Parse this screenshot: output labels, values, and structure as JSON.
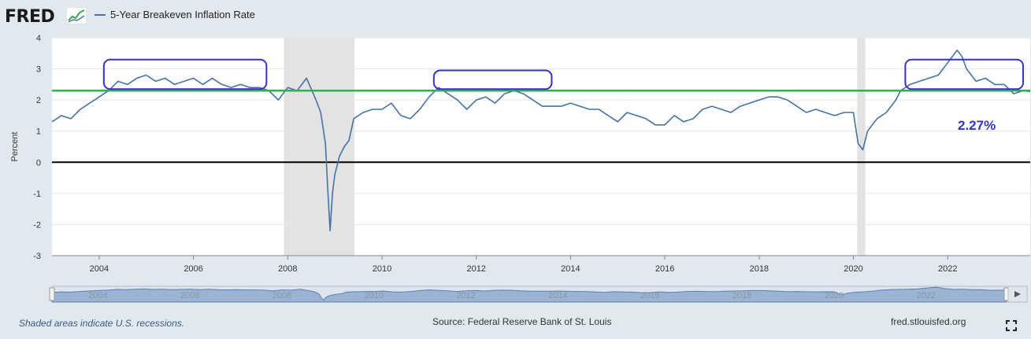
{
  "header": {
    "logo_text": "FRED",
    "logo_icon": "line-chart-icon",
    "legend_label": "5-Year Breakeven Inflation Rate"
  },
  "footer": {
    "recession_note": "Shaded areas indicate U.S. recessions.",
    "source": "Source: Federal Reserve Bank of St. Louis",
    "site": "fred.stlouisfed.org",
    "fullscreen_icon": "fullscreen-icon"
  },
  "colors": {
    "series": "#4572a7",
    "reference_line": "#2db34a",
    "zero_line": "#000000",
    "annotation": "#3333cc",
    "recession": "#e3e3e3",
    "background": "#e1e9f0"
  },
  "chart_data": {
    "type": "line",
    "ylabel": "Percent",
    "ylim": [
      -3,
      4
    ],
    "xlim": [
      2003.0,
      2023.75
    ],
    "x_ticks": [
      2004,
      2006,
      2008,
      2010,
      2012,
      2014,
      2016,
      2018,
      2020,
      2022
    ],
    "y_ticks": [
      -3,
      -2,
      -1,
      0,
      1,
      2,
      3,
      4
    ],
    "grid": "horizontal",
    "recessions": [
      [
        2007.92,
        2009.42
      ],
      [
        2020.08,
        2020.25
      ]
    ],
    "series": [
      {
        "name": "5-Year Breakeven Inflation Rate",
        "x": [
          2003.0,
          2003.2,
          2003.4,
          2003.6,
          2003.8,
          2004.0,
          2004.2,
          2004.4,
          2004.6,
          2004.8,
          2005.0,
          2005.2,
          2005.4,
          2005.6,
          2005.8,
          2006.0,
          2006.2,
          2006.4,
          2006.6,
          2006.8,
          2007.0,
          2007.2,
          2007.4,
          2007.6,
          2007.8,
          2008.0,
          2008.2,
          2008.4,
          2008.6,
          2008.7,
          2008.8,
          2008.85,
          2008.9,
          2008.95,
          2009.0,
          2009.1,
          2009.2,
          2009.3,
          2009.4,
          2009.6,
          2009.8,
          2010.0,
          2010.2,
          2010.4,
          2010.6,
          2010.8,
          2011.0,
          2011.2,
          2011.4,
          2011.6,
          2011.8,
          2012.0,
          2012.2,
          2012.4,
          2012.6,
          2012.8,
          2013.0,
          2013.2,
          2013.4,
          2013.6,
          2013.8,
          2014.0,
          2014.2,
          2014.4,
          2014.6,
          2014.8,
          2015.0,
          2015.2,
          2015.4,
          2015.6,
          2015.8,
          2016.0,
          2016.2,
          2016.4,
          2016.6,
          2016.8,
          2017.0,
          2017.2,
          2017.4,
          2017.6,
          2017.8,
          2018.0,
          2018.2,
          2018.4,
          2018.6,
          2018.8,
          2019.0,
          2019.2,
          2019.4,
          2019.6,
          2019.8,
          2020.0,
          2020.1,
          2020.2,
          2020.3,
          2020.5,
          2020.7,
          2020.9,
          2021.0,
          2021.2,
          2021.4,
          2021.6,
          2021.8,
          2022.0,
          2022.2,
          2022.3,
          2022.4,
          2022.6,
          2022.8,
          2023.0,
          2023.2,
          2023.4,
          2023.6,
          2023.75
        ],
        "y": [
          1.3,
          1.5,
          1.4,
          1.7,
          1.9,
          2.1,
          2.3,
          2.6,
          2.5,
          2.7,
          2.8,
          2.6,
          2.7,
          2.5,
          2.6,
          2.7,
          2.5,
          2.7,
          2.5,
          2.4,
          2.5,
          2.4,
          2.4,
          2.3,
          2.0,
          2.4,
          2.3,
          2.7,
          2.0,
          1.6,
          0.6,
          -0.9,
          -2.2,
          -1.0,
          -0.4,
          0.2,
          0.5,
          0.7,
          1.4,
          1.6,
          1.7,
          1.7,
          1.9,
          1.5,
          1.4,
          1.7,
          2.1,
          2.4,
          2.2,
          2.0,
          1.7,
          2.0,
          2.1,
          1.9,
          2.2,
          2.3,
          2.2,
          2.0,
          1.8,
          1.8,
          1.8,
          1.9,
          1.8,
          1.7,
          1.7,
          1.5,
          1.3,
          1.6,
          1.5,
          1.4,
          1.2,
          1.2,
          1.5,
          1.3,
          1.4,
          1.7,
          1.8,
          1.7,
          1.6,
          1.8,
          1.9,
          2.0,
          2.1,
          2.1,
          2.0,
          1.8,
          1.6,
          1.7,
          1.6,
          1.5,
          1.6,
          1.6,
          0.6,
          0.4,
          1.0,
          1.4,
          1.6,
          2.0,
          2.3,
          2.5,
          2.6,
          2.7,
          2.8,
          3.2,
          3.6,
          3.4,
          3.0,
          2.6,
          2.7,
          2.5,
          2.5,
          2.2,
          2.3,
          2.27
        ]
      }
    ],
    "reference_line_y": 2.3,
    "annotation_label": "2.27%",
    "highlight_boxes": [
      {
        "x0": 2004.1,
        "x1": 2007.55,
        "y0": 2.35,
        "y1": 3.3
      },
      {
        "x0": 2011.1,
        "x1": 2013.6,
        "y0": 2.35,
        "y1": 2.95
      },
      {
        "x0": 2021.1,
        "x1": 2023.6,
        "y0": 2.35,
        "y1": 3.3
      }
    ],
    "navigator_tick_labels": [
      "2004",
      "2006",
      "2008",
      "2010",
      "2012",
      "2014",
      "2016",
      "2018",
      "2020",
      "2022"
    ]
  }
}
